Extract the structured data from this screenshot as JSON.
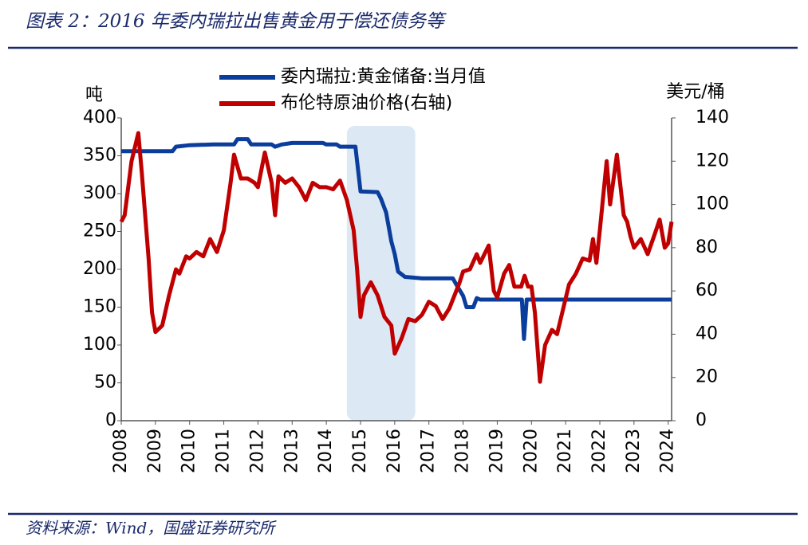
{
  "chart_data": {
    "type": "line",
    "title": "图表 2：2016 年委内瑞拉出售黄金用于偿还债务等",
    "source": "资料来源：Wind，国盛证券研究所",
    "y_label": "吨",
    "y2_label": "美元/桶",
    "xlim": [
      2008,
      2024.1
    ],
    "xticks": [
      2008,
      2009,
      2010,
      2011,
      2012,
      2013,
      2014,
      2015,
      2016,
      2017,
      2018,
      2019,
      2020,
      2021,
      2022,
      2023,
      2024
    ],
    "ylim": [
      0,
      400
    ],
    "yticks": [
      0,
      50,
      100,
      150,
      200,
      250,
      300,
      350,
      400
    ],
    "y2lim": [
      0,
      140
    ],
    "y2ticks": [
      0,
      20,
      40,
      60,
      80,
      100,
      120,
      140
    ],
    "highlight": [
      2014.6,
      2016.6
    ],
    "highlight_color": "#dce9f5",
    "legend": "top",
    "series": [
      {
        "name": "委内瑞拉:黄金储备:当月值",
        "color": "#0b3d9c",
        "axis": "y",
        "x": [
          2008.0,
          2009.5,
          2009.6,
          2010.0,
          2010.7,
          2011.3,
          2011.4,
          2011.7,
          2011.8,
          2012.4,
          2012.5,
          2012.7,
          2013.0,
          2013.9,
          2014.0,
          2014.3,
          2014.4,
          2014.85,
          2015.0,
          2015.5,
          2015.6,
          2015.75,
          2015.9,
          2016.0,
          2016.1,
          2016.3,
          2016.8,
          2017.7,
          2017.8,
          2018.0,
          2018.1,
          2018.3,
          2018.4,
          2018.5,
          2019.72,
          2019.78,
          2019.86,
          2024.1
        ],
        "values": [
          356,
          356,
          362,
          364,
          365,
          365,
          372,
          372,
          365,
          365,
          362,
          365,
          367,
          367,
          365,
          365,
          362,
          362,
          303,
          302,
          293,
          275,
          237,
          220,
          197,
          190,
          188,
          188,
          180,
          165,
          150,
          150,
          162,
          160,
          160,
          108,
          160,
          160
        ]
      },
      {
        "name": "布伦特原油价格(右轴)",
        "color": "#c00000",
        "axis": "y2",
        "x": [
          2008.0,
          2008.1,
          2008.3,
          2008.5,
          2008.6,
          2008.8,
          2008.9,
          2009.0,
          2009.2,
          2009.4,
          2009.6,
          2009.7,
          2009.9,
          2010.0,
          2010.2,
          2010.4,
          2010.6,
          2010.8,
          2011.0,
          2011.2,
          2011.3,
          2011.5,
          2011.7,
          2011.9,
          2012.0,
          2012.2,
          2012.4,
          2012.5,
          2012.6,
          2012.8,
          2013.0,
          2013.2,
          2013.4,
          2013.6,
          2013.8,
          2014.0,
          2014.2,
          2014.4,
          2014.6,
          2014.8,
          2014.9,
          2015.0,
          2015.1,
          2015.3,
          2015.5,
          2015.7,
          2015.9,
          2016.0,
          2016.2,
          2016.4,
          2016.6,
          2016.8,
          2017.0,
          2017.2,
          2017.4,
          2017.6,
          2017.9,
          2018.0,
          2018.2,
          2018.4,
          2018.5,
          2018.75,
          2018.9,
          2019.0,
          2019.2,
          2019.35,
          2019.5,
          2019.7,
          2019.8,
          2019.9,
          2020.0,
          2020.1,
          2020.25,
          2020.4,
          2020.6,
          2020.75,
          2020.9,
          2021.1,
          2021.3,
          2021.5,
          2021.7,
          2021.8,
          2021.9,
          2022.0,
          2022.2,
          2022.3,
          2022.5,
          2022.7,
          2022.8,
          2022.9,
          2023.0,
          2023.2,
          2023.4,
          2023.6,
          2023.75,
          2023.9,
          2024.0,
          2024.1
        ],
        "values": [
          92,
          95,
          120,
          133,
          115,
          75,
          50,
          41,
          44,
          58,
          70,
          68,
          76,
          75,
          78,
          76,
          84,
          78,
          88,
          110,
          123,
          112,
          112,
          110,
          108,
          124,
          110,
          95,
          113,
          110,
          112,
          108,
          102,
          110,
          108,
          108,
          107,
          111,
          102,
          88,
          70,
          48,
          58,
          64,
          58,
          48,
          44,
          31,
          38,
          47,
          46,
          49,
          55,
          53,
          47,
          52,
          64,
          69,
          70,
          77,
          73,
          81,
          60,
          57,
          68,
          72,
          62,
          62,
          67,
          62,
          62,
          50,
          18,
          35,
          42,
          40,
          50,
          63,
          68,
          75,
          74,
          84,
          73,
          88,
          120,
          100,
          123,
          95,
          92,
          85,
          80,
          84,
          77,
          86,
          93,
          80,
          82,
          92
        ]
      }
    ]
  }
}
